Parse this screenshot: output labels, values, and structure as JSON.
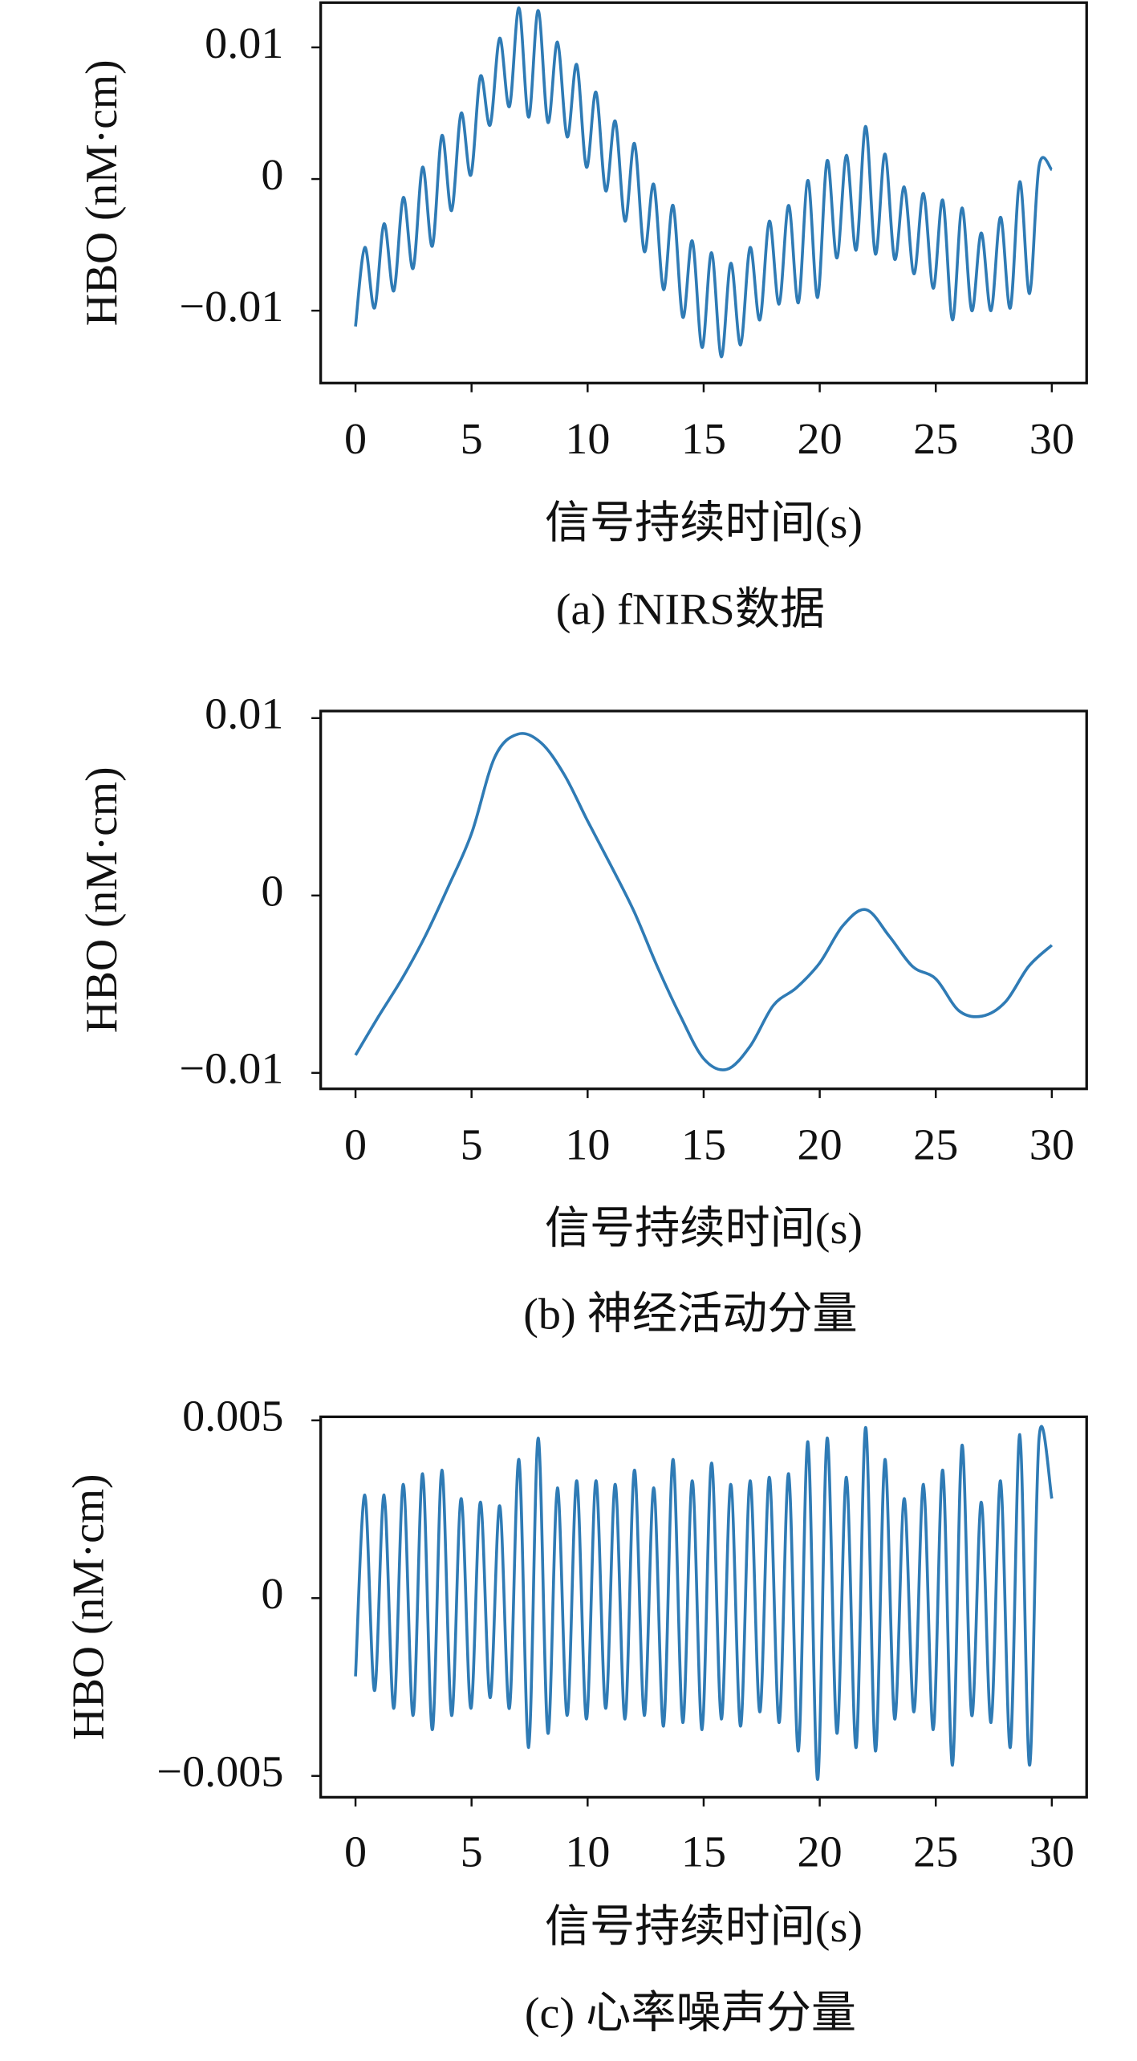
{
  "chart_data": [
    {
      "type": "line",
      "title": "(a) fNIRS数据",
      "xlabel": "信号持续时间(s)",
      "ylabel": "HBO (nM·cm)",
      "color": "#2f7bb5",
      "xlim": [
        -1.5,
        31.5
      ],
      "ylim": [
        -0.0155,
        0.0134
      ],
      "xticks": [
        0,
        5,
        10,
        15,
        20,
        25,
        30
      ],
      "yticks": [
        {
          "value": -0.01,
          "label": "−0.01"
        },
        0,
        0.01
      ],
      "x": [
        0,
        0.4,
        0.82,
        1.23,
        1.65,
        2.06,
        2.48,
        2.89,
        3.31,
        3.72,
        4.14,
        4.55,
        4.97,
        5.38,
        5.8,
        6.21,
        6.63,
        7.04,
        7.46,
        7.87,
        8.29,
        8.7,
        9.12,
        9.53,
        9.95,
        10.36,
        10.78,
        11.19,
        11.61,
        12.02,
        12.44,
        12.85,
        13.27,
        13.68,
        14.1,
        14.51,
        14.93,
        15.34,
        15.76,
        16.17,
        16.59,
        17.0,
        17.42,
        17.83,
        18.25,
        18.66,
        19.08,
        19.49,
        19.91,
        20.32,
        20.74,
        21.15,
        21.57,
        21.98,
        22.4,
        22.81,
        23.23,
        23.64,
        24.06,
        24.47,
        24.89,
        25.3,
        25.72,
        26.13,
        26.55,
        26.96,
        27.38,
        27.79,
        28.21,
        28.62,
        29.04,
        29.45,
        30
      ],
      "values": [
        -0.0112,
        -0.0052,
        -0.0098,
        -0.0034,
        -0.0085,
        -0.0014,
        -0.0068,
        0.0009,
        -0.0051,
        0.0033,
        -0.0024,
        0.005,
        0.0003,
        0.0078,
        0.0041,
        0.0107,
        0.0055,
        0.013,
        0.0047,
        0.0128,
        0.0043,
        0.0104,
        0.0032,
        0.0087,
        0.0009,
        0.0066,
        -0.0009,
        0.0044,
        -0.0032,
        0.0027,
        -0.0055,
        -0.0004,
        -0.0084,
        -0.002,
        -0.0105,
        -0.0047,
        -0.0128,
        -0.0056,
        -0.0135,
        -0.0064,
        -0.0126,
        -0.0052,
        -0.0107,
        -0.0032,
        -0.0095,
        -0.002,
        -0.0094,
        -0.0001,
        -0.009,
        0.0014,
        -0.006,
        0.0018,
        -0.0054,
        0.004,
        -0.0057,
        0.0019,
        -0.0061,
        -0.0006,
        -0.0072,
        -0.0011,
        -0.0083,
        -0.0016,
        -0.0107,
        -0.0022,
        -0.01,
        -0.0041,
        -0.01,
        -0.0029,
        -0.0098,
        -0.0002,
        -0.0087,
        0.001,
        0.0007
      ]
    },
    {
      "type": "line",
      "title": "(b) 神经活动分量",
      "xlabel": "信号持续时间(s)",
      "ylabel": "HBO (nM·cm)",
      "color": "#2f7bb5",
      "xlim": [
        -1.5,
        31.5
      ],
      "ylim": [
        -0.0109,
        0.0104
      ],
      "xticks": [
        0,
        5,
        10,
        15,
        20,
        25,
        30
      ],
      "yticks": [
        {
          "value": -0.01,
          "label": "−0.01"
        },
        0,
        0.01
      ],
      "x": [
        0,
        1,
        2,
        3,
        4,
        5,
        6,
        7,
        8,
        9,
        10,
        11,
        12,
        13,
        14,
        15,
        16,
        17,
        18,
        19,
        20,
        21,
        22,
        23,
        24,
        25,
        26,
        27,
        28,
        29,
        30
      ],
      "values": [
        -0.009,
        -0.0068,
        -0.0047,
        -0.0023,
        0.0005,
        0.0035,
        0.0078,
        0.0091,
        0.0086,
        0.0068,
        0.0042,
        0.0017,
        -0.0009,
        -0.004,
        -0.0068,
        -0.0092,
        -0.0098,
        -0.0085,
        -0.0062,
        -0.0052,
        -0.0038,
        -0.0017,
        -0.0008,
        -0.0023,
        -0.004,
        -0.0047,
        -0.0065,
        -0.0068,
        -0.006,
        -0.004,
        -0.0028
      ]
    },
    {
      "type": "line",
      "title": "(c) 心率噪声分量",
      "xlabel": "信号持续时间(s)",
      "ylabel": "HBO (nM·cm)",
      "color": "#2f7bb5",
      "xlim": [
        -1.5,
        31.5
      ],
      "ylim": [
        -0.0056,
        0.0051
      ],
      "xticks": [
        0,
        5,
        10,
        15,
        20,
        25,
        30
      ],
      "yticks": [
        {
          "value": -0.005,
          "label": "−0.005"
        },
        0,
        0.005
      ],
      "x": [
        0,
        0.4,
        0.82,
        1.23,
        1.65,
        2.06,
        2.48,
        2.89,
        3.31,
        3.72,
        4.14,
        4.55,
        4.97,
        5.38,
        5.8,
        6.21,
        6.63,
        7.04,
        7.46,
        7.87,
        8.29,
        8.7,
        9.12,
        9.53,
        9.95,
        10.36,
        10.78,
        11.19,
        11.61,
        12.02,
        12.44,
        12.85,
        13.27,
        13.68,
        14.1,
        14.51,
        14.93,
        15.34,
        15.76,
        16.17,
        16.59,
        17.0,
        17.42,
        17.83,
        18.25,
        18.66,
        19.08,
        19.49,
        19.91,
        20.32,
        20.74,
        21.15,
        21.57,
        21.98,
        22.4,
        22.81,
        23.23,
        23.64,
        24.06,
        24.47,
        24.89,
        25.3,
        25.72,
        26.13,
        26.55,
        26.96,
        27.38,
        27.79,
        28.21,
        28.62,
        29.04,
        29.45,
        30
      ],
      "values": [
        -0.0022,
        0.0029,
        -0.0026,
        0.0029,
        -0.0031,
        0.0032,
        -0.0033,
        0.0035,
        -0.0037,
        0.0036,
        -0.0033,
        0.0028,
        -0.0031,
        0.0027,
        -0.0028,
        0.0026,
        -0.0031,
        0.0039,
        -0.0042,
        0.0045,
        -0.0038,
        0.0031,
        -0.0033,
        0.0033,
        -0.0034,
        0.0033,
        -0.0031,
        0.0032,
        -0.0034,
        0.0036,
        -0.0033,
        0.0031,
        -0.0036,
        0.0039,
        -0.0035,
        0.0033,
        -0.0037,
        0.0038,
        -0.0034,
        0.0032,
        -0.0036,
        0.0033,
        -0.0032,
        0.0034,
        -0.0035,
        0.0035,
        -0.0043,
        0.0044,
        -0.0051,
        0.0045,
        -0.0038,
        0.0034,
        -0.0042,
        0.0048,
        -0.0043,
        0.0039,
        -0.0034,
        0.0028,
        -0.0032,
        0.0032,
        -0.0037,
        0.0036,
        -0.0047,
        0.0043,
        -0.0033,
        0.0027,
        -0.0035,
        0.0033,
        -0.0042,
        0.0046,
        -0.0047,
        0.0045,
        0.0028
      ]
    }
  ]
}
